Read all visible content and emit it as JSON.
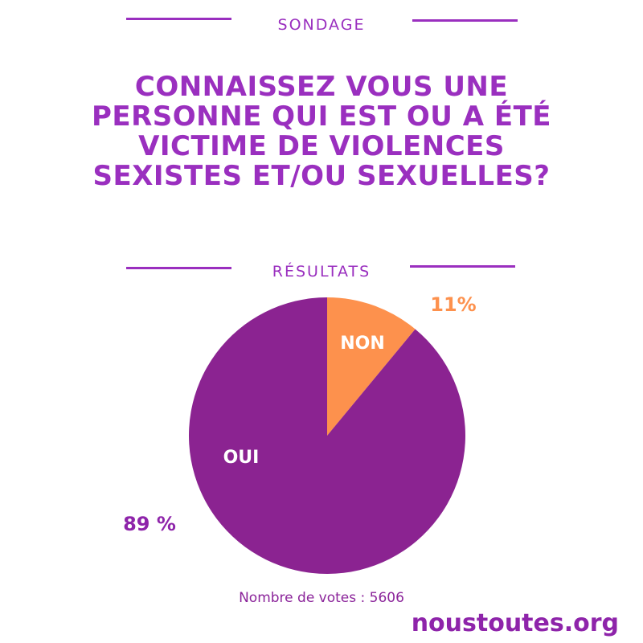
{
  "header": {
    "label": "SONDAGE"
  },
  "question": "CONNAISSEZ VOUS UNE PERSONNE QUI EST OU A ÉTÉ VICTIME DE VIOLENCES SEXISTES ET/OU SEXUELLES?",
  "results": {
    "label": "RÉSULTATS"
  },
  "chart_data": {
    "type": "pie",
    "slices": [
      {
        "label": "NON",
        "value": 11,
        "percent_label": "11%",
        "color": "#fd914d"
      },
      {
        "label": "OUI",
        "value": 89,
        "percent_label": "89 %",
        "color": "#8b2391"
      }
    ]
  },
  "footer": {
    "votes": "Nombre de votes : 5606",
    "brand": "noustoutes.org"
  },
  "colors": {
    "accent": "#9a2fbf",
    "non": "#fd914d",
    "oui": "#8b2391"
  }
}
